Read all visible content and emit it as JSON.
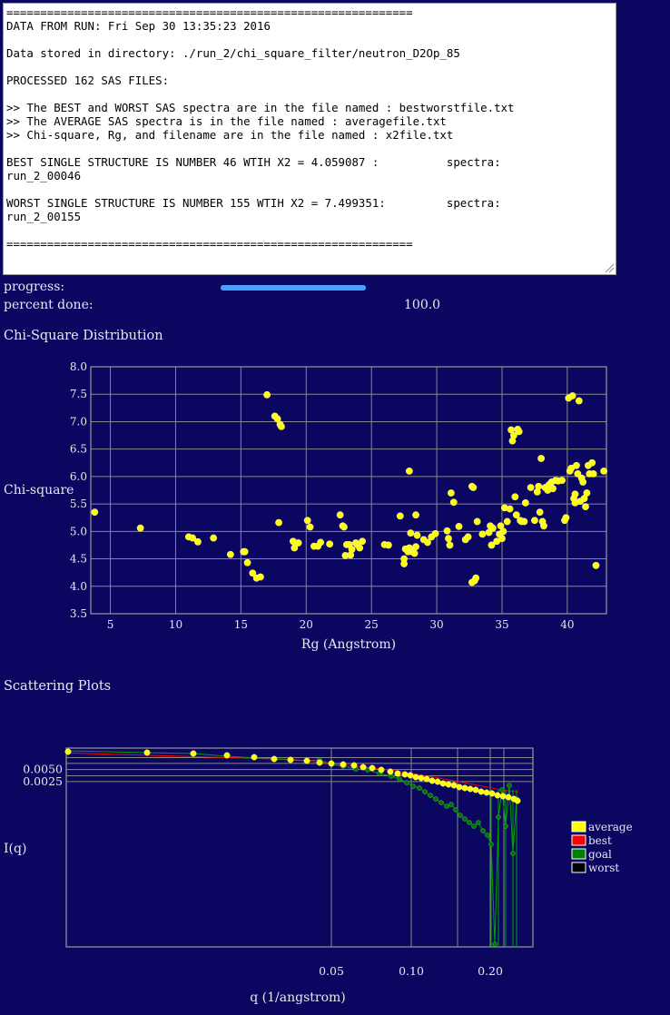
{
  "log": {
    "lines": [
      "============================================================",
      "DATA FROM RUN: Fri Sep 30 13:35:23 2016",
      "",
      "Data stored in directory: ./run_2/chi_square_filter/neutron_D2Op_85",
      "",
      "PROCESSED 162 SAS FILES:",
      "",
      ">> The BEST and WORST SAS spectra are in the file named : bestworstfile.txt",
      ">> The AVERAGE SAS spectra is in the file named : averagefile.txt",
      ">> Chi-square, Rg, and filename are in the file named : x2file.txt",
      "",
      "BEST SINGLE STRUCTURE IS NUMBER 46 WTIH X2 = 4.059087 :          spectra:",
      "run_2_00046",
      "",
      "WORST SINGLE STRUCTURE IS NUMBER 155 WTIH X2 = 7.499351:         spectra:",
      "run_2_00155",
      "",
      "============================================================"
    ]
  },
  "progress": {
    "label": "progress:",
    "fraction": 1.0,
    "percent_label": "percent done:",
    "percent_value": "100.0"
  },
  "chi_title": "Chi-Square Distribution",
  "scatter_title": "Scattering Plots",
  "colors": {
    "background": "#0b0660",
    "point": "#ffff00",
    "grid": "#888888",
    "progress": "#45a0ff"
  },
  "chart_data": [
    {
      "type": "scatter",
      "title": "Chi-Square Distribution",
      "xlabel": "Rg (Angstrom)",
      "ylabel": "Chi-square",
      "xlim": [
        3.5,
        43
      ],
      "ylim": [
        3.5,
        8.0
      ],
      "x_ticks": [
        "5",
        "10",
        "15",
        "20",
        "25",
        "30",
        "35",
        "40"
      ],
      "y_ticks": [
        "3.5",
        "4.0",
        "4.5",
        "5.0",
        "5.5",
        "6.0",
        "6.5",
        "7.0",
        "7.5",
        "8.0"
      ],
      "grid": true,
      "series": [
        {
          "points": [
            [
              3.8,
              5.35
            ],
            [
              7.3,
              5.06
            ],
            [
              11.0,
              4.9
            ],
            [
              11.3,
              4.88
            ],
            [
              11.7,
              4.81
            ],
            [
              12.9,
              4.88
            ],
            [
              14.2,
              4.58
            ],
            [
              15.2,
              4.63
            ],
            [
              15.3,
              4.63
            ],
            [
              15.5,
              4.43
            ],
            [
              15.9,
              4.24
            ],
            [
              16.2,
              4.15
            ],
            [
              16.5,
              4.17
            ],
            [
              17.0,
              7.49
            ],
            [
              17.6,
              7.1
            ],
            [
              17.8,
              7.05
            ],
            [
              18.0,
              6.95
            ],
            [
              18.1,
              6.91
            ],
            [
              17.9,
              5.16
            ],
            [
              19.0,
              4.82
            ],
            [
              19.1,
              4.7
            ],
            [
              19.4,
              4.79
            ],
            [
              20.1,
              5.2
            ],
            [
              20.3,
              5.08
            ],
            [
              20.6,
              4.73
            ],
            [
              20.9,
              4.73
            ],
            [
              21.1,
              4.8
            ],
            [
              21.8,
              4.77
            ],
            [
              22.6,
              5.3
            ],
            [
              22.8,
              5.1
            ],
            [
              22.9,
              5.08
            ],
            [
              23.0,
              4.56
            ],
            [
              23.1,
              4.76
            ],
            [
              23.3,
              4.76
            ],
            [
              23.4,
              4.57
            ],
            [
              23.8,
              4.79
            ],
            [
              23.9,
              4.76
            ],
            [
              24.1,
              4.7
            ],
            [
              24.3,
              4.82
            ],
            [
              26.0,
              4.76
            ],
            [
              26.3,
              4.75
            ],
            [
              27.2,
              5.28
            ],
            [
              27.5,
              4.5
            ],
            [
              27.5,
              4.41
            ],
            [
              27.6,
              4.68
            ],
            [
              27.8,
              4.63
            ],
            [
              27.9,
              4.7
            ],
            [
              27.9,
              6.1
            ],
            [
              28.0,
              4.97
            ],
            [
              28.1,
              4.63
            ],
            [
              28.3,
              4.6
            ],
            [
              28.4,
              5.3
            ],
            [
              28.4,
              4.72
            ],
            [
              28.5,
              4.93
            ],
            [
              29.0,
              4.85
            ],
            [
              29.3,
              4.8
            ],
            [
              29.6,
              4.9
            ],
            [
              29.9,
              4.96
            ],
            [
              30.8,
              5.01
            ],
            [
              30.9,
              4.87
            ],
            [
              31.0,
              4.75
            ],
            [
              31.1,
              5.7
            ],
            [
              31.3,
              5.53
            ],
            [
              31.7,
              5.09
            ],
            [
              32.2,
              4.85
            ],
            [
              32.4,
              4.9
            ],
            [
              32.7,
              5.82
            ],
            [
              32.8,
              5.8
            ],
            [
              32.9,
              4.1
            ],
            [
              33.0,
              4.15
            ],
            [
              32.7,
              4.07
            ],
            [
              33.1,
              5.18
            ],
            [
              33.5,
              4.95
            ],
            [
              34.0,
              4.98
            ],
            [
              34.1,
              5.1
            ],
            [
              34.2,
              4.75
            ],
            [
              34.3,
              5.06
            ],
            [
              34.6,
              4.82
            ],
            [
              34.8,
              4.95
            ],
            [
              34.9,
              5.1
            ],
            [
              35.0,
              4.87
            ],
            [
              35.1,
              5.0
            ],
            [
              35.2,
              5.43
            ],
            [
              35.6,
              5.41
            ],
            [
              35.7,
              6.85
            ],
            [
              35.8,
              6.65
            ],
            [
              35.9,
              6.75
            ],
            [
              36.0,
              5.63
            ],
            [
              36.1,
              5.3
            ],
            [
              36.2,
              6.86
            ],
            [
              36.3,
              6.82
            ],
            [
              36.4,
              5.2
            ],
            [
              36.7,
              5.18
            ],
            [
              36.8,
              5.52
            ],
            [
              37.2,
              5.8
            ],
            [
              37.5,
              5.2
            ],
            [
              37.7,
              5.72
            ],
            [
              37.8,
              5.82
            ],
            [
              37.9,
              5.35
            ],
            [
              38.0,
              6.33
            ],
            [
              38.1,
              5.18
            ],
            [
              38.2,
              5.1
            ],
            [
              38.3,
              5.8
            ],
            [
              38.5,
              5.75
            ],
            [
              38.6,
              5.85
            ],
            [
              38.8,
              5.9
            ],
            [
              38.9,
              5.78
            ],
            [
              39.1,
              5.93
            ],
            [
              39.3,
              5.92
            ],
            [
              39.6,
              5.93
            ],
            [
              39.8,
              5.2
            ],
            [
              39.9,
              5.25
            ],
            [
              40.1,
              7.43
            ],
            [
              40.2,
              6.1
            ],
            [
              40.3,
              6.15
            ],
            [
              40.4,
              7.47
            ],
            [
              40.5,
              5.6
            ],
            [
              40.6,
              5.52
            ],
            [
              40.6,
              5.68
            ],
            [
              40.7,
              6.2
            ],
            [
              40.8,
              6.05
            ],
            [
              40.9,
              7.38
            ],
            [
              41.0,
              5.55
            ],
            [
              41.1,
              5.97
            ],
            [
              41.2,
              5.9
            ],
            [
              41.3,
              5.6
            ],
            [
              41.4,
              5.45
            ],
            [
              41.5,
              5.7
            ],
            [
              41.6,
              6.2
            ],
            [
              41.7,
              6.05
            ],
            [
              41.9,
              6.25
            ],
            [
              42.0,
              6.05
            ],
            [
              42.2,
              4.38
            ],
            [
              42.8,
              6.1
            ],
            [
              36.5,
              5.18
            ],
            [
              35.4,
              5.18
            ],
            [
              23.5,
              4.67
            ]
          ]
        }
      ]
    },
    {
      "type": "line",
      "title": "Scattering Plots",
      "xlabel": "q (1/angstrom)",
      "ylabel": "I(q)",
      "x_ticks": [
        "0.05",
        "0.10",
        "0.20"
      ],
      "y_ticks": [
        "0.0050",
        "0.0025"
      ],
      "legend_position": "right",
      "series": [
        {
          "name": "average",
          "color": "#ffff00",
          "values": [
            [
              0.0,
              0.0083
            ],
            [
              0.01,
              0.0082
            ],
            [
              0.02,
              0.008
            ],
            [
              0.03,
              0.0078
            ],
            [
              0.04,
              0.0075
            ],
            [
              0.05,
              0.007
            ],
            [
              0.06,
              0.0066
            ],
            [
              0.07,
              0.0062
            ],
            [
              0.08,
              0.0058
            ],
            [
              0.09,
              0.0054
            ],
            [
              0.1,
              0.0049
            ],
            [
              0.12,
              0.004
            ],
            [
              0.14,
              0.0031
            ],
            [
              0.16,
              0.0022
            ],
            [
              0.18,
              0.0013
            ],
            [
              0.2,
              0.0006
            ],
            [
              0.22,
              0.0002
            ]
          ]
        },
        {
          "name": "best",
          "color": "#ff0000",
          "values": [
            [
              0.0,
              0.0085
            ],
            [
              0.05,
              0.0071
            ],
            [
              0.1,
              0.0049
            ],
            [
              0.15,
              0.0026
            ],
            [
              0.2,
              0.0007
            ],
            [
              0.22,
              0.0003
            ]
          ]
        },
        {
          "name": "goal",
          "color": "#008000",
          "values": [
            [
              0.0,
              0.0083
            ],
            [
              0.05,
              0.0072
            ],
            [
              0.08,
              0.006
            ],
            [
              0.1,
              0.0046
            ],
            [
              0.12,
              0.0032
            ],
            [
              0.14,
              0.0018
            ],
            [
              0.16,
              0.0005
            ],
            [
              0.18,
              -0.001
            ],
            [
              0.2,
              -0.03
            ],
            [
              0.22,
              -0.03
            ]
          ]
        },
        {
          "name": "worst",
          "color": "#000000",
          "values": []
        }
      ]
    }
  ]
}
